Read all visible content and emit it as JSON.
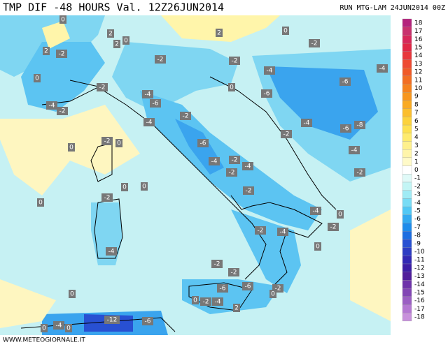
{
  "header": {
    "title": "TMP DIF -48 HOURS Val. 12Z26JUN2014",
    "run": "RUN MTG-LAM 24JUN2014 00Z"
  },
  "footer": "WWW.METEOGIORNALE.IT",
  "legend": {
    "values": [
      18,
      17,
      16,
      15,
      14,
      13,
      12,
      11,
      10,
      9,
      8,
      7,
      6,
      5,
      4,
      3,
      2,
      1,
      0,
      -1,
      -2,
      -3,
      -4,
      -5,
      -6,
      -7,
      -8,
      -9,
      -10,
      -11,
      -12,
      -13,
      -14,
      -15,
      -16,
      -17,
      -18
    ],
    "colors": [
      "#b4237d",
      "#c8326e",
      "#d7285a",
      "#e02846",
      "#e8373c",
      "#ee4b32",
      "#f05a28",
      "#f26e23",
      "#f5821e",
      "#f7961e",
      "#f9aa23",
      "#fbbe2d",
      "#fcd23c",
      "#fde150",
      "#feeb6e",
      "#fef08c",
      "#fff5aa",
      "#fffac8",
      "#ffffff",
      "#e0faf8",
      "#c3f5f5",
      "#a0ebf5",
      "#78dcf5",
      "#50c8f5",
      "#32aaf0",
      "#1e8ceb",
      "#1e6ee1",
      "#2850d2",
      "#2d3cc3",
      "#3228b4",
      "#3c1ea5",
      "#501e9b",
      "#6e32aa",
      "#8246b4",
      "#9b5fc3",
      "#b478d2",
      "#c891dc"
    ]
  },
  "labels": [
    0,
    2,
    0,
    2,
    0,
    2,
    -2,
    2,
    -2,
    -2,
    -2,
    0,
    -2,
    -4,
    -4,
    -6,
    -4,
    -6,
    -6,
    -4,
    -2,
    0,
    -4,
    -2,
    -4,
    -6,
    -8,
    -2,
    -6,
    -2,
    0,
    0,
    -4,
    -4,
    -2,
    -4,
    -2,
    -2,
    0,
    0,
    -2,
    -2,
    0,
    -4,
    0,
    -2,
    -2,
    -4,
    0,
    -4,
    -2,
    -2,
    0,
    -6,
    -6,
    -2,
    0,
    0,
    -2,
    -4,
    2,
    -12,
    -6,
    -4,
    0,
    0
  ]
}
